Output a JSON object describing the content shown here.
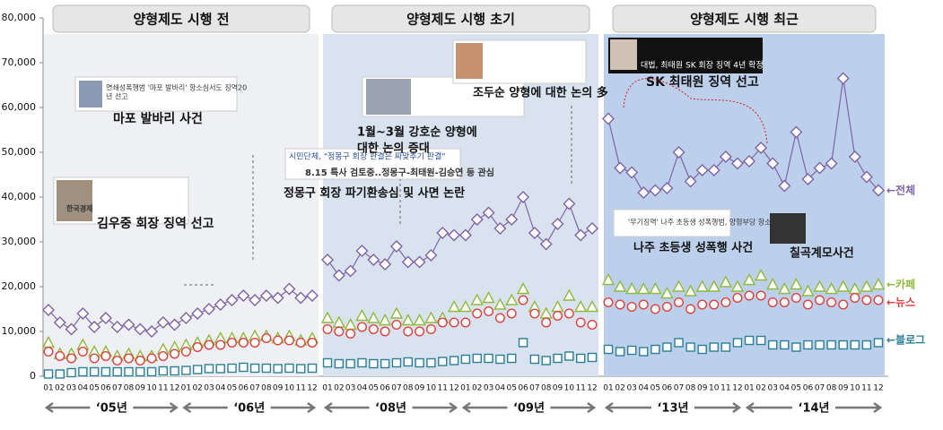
{
  "chart_data": {
    "type": "line",
    "ylim": [
      0,
      80000
    ],
    "yticks": [
      0,
      {
        "value": 10000,
        "label": "10,000"
      },
      {
        "value": 20000,
        "label": "20,000"
      },
      {
        "value": 30000,
        "label": "30,000"
      },
      {
        "value": 40000,
        "label": "40,000"
      },
      {
        "value": 50000,
        "label": "50,000"
      },
      {
        "value": 60000,
        "label": "60,000"
      },
      {
        "value": 70000,
        "label": "70,000"
      },
      {
        "value": 80000,
        "label": "80,000"
      }
    ],
    "grid": false,
    "series": [
      {
        "name": "←전체",
        "color": "#7f63a6",
        "marker": "diamond",
        "line": true
      },
      {
        "name": "←카페",
        "color": "#8fba3f",
        "marker": "triangle",
        "line": false
      },
      {
        "name": "←뉴스",
        "color": "#e0413d",
        "marker": "circle",
        "line": false
      },
      {
        "name": "←블로그",
        "color": "#2c7f96",
        "marker": "square",
        "line": false
      }
    ],
    "panels": [
      {
        "title": "양형제도 시행 전",
        "years": [
          "‘05년",
          "‘06년"
        ],
        "categories": [
          "01",
          "02",
          "03",
          "04",
          "05",
          "06",
          "07",
          "08",
          "09",
          "10",
          "11",
          "12",
          "01",
          "02",
          "03",
          "04",
          "05",
          "06",
          "07",
          "08",
          "09",
          "10",
          "11",
          "12"
        ],
        "values": [
          [
            14800,
            12000,
            10500,
            14000,
            11000,
            13000,
            11000,
            11500,
            10500,
            10000,
            12000,
            11500,
            13000,
            14000,
            15000,
            16000,
            17000,
            18000,
            17000,
            18000,
            17500,
            19500,
            17500,
            18000
          ],
          [
            7500,
            5000,
            5000,
            7000,
            5500,
            5500,
            4500,
            5000,
            4500,
            4500,
            6000,
            6500,
            7000,
            7500,
            8000,
            8500,
            8500,
            8500,
            9000,
            9000,
            8500,
            9000,
            8000,
            8500
          ],
          [
            5500,
            4500,
            4000,
            5500,
            4000,
            4500,
            3500,
            4000,
            3500,
            4000,
            4500,
            5000,
            5500,
            6500,
            7000,
            7000,
            7500,
            7500,
            7500,
            8500,
            8000,
            8000,
            7500,
            7500
          ],
          [
            500,
            500,
            800,
            1000,
            1000,
            1000,
            1000,
            1000,
            1000,
            1000,
            1200,
            1200,
            1300,
            1500,
            1700,
            1700,
            1800,
            2000,
            1800,
            1800,
            1700,
            1800,
            1700,
            1800
          ]
        ]
      },
      {
        "title": "양형제도 시행 초기",
        "years": [
          "‘08년",
          "‘09년"
        ],
        "categories": [
          "01",
          "02",
          "03",
          "04",
          "05",
          "06",
          "07",
          "08",
          "09",
          "10",
          "11",
          "12",
          "01",
          "02",
          "03",
          "04",
          "05",
          "06",
          "07",
          "08",
          "09",
          "10",
          "11",
          "12"
        ],
        "values": [
          [
            26000,
            22500,
            23500,
            28000,
            26000,
            25000,
            29000,
            25500,
            25500,
            27000,
            32000,
            31500,
            31500,
            35000,
            36500,
            33000,
            35000,
            40000,
            32000,
            29500,
            34000,
            38500,
            31500,
            33000
          ],
          [
            13000,
            12000,
            11500,
            13500,
            13000,
            12500,
            14000,
            12500,
            12500,
            13000,
            13000,
            15500,
            15500,
            17000,
            17500,
            16000,
            17000,
            19500,
            15500,
            14000,
            15500,
            18000,
            15500,
            15500
          ],
          [
            10500,
            10000,
            9500,
            11000,
            10500,
            10000,
            11500,
            10000,
            10000,
            10500,
            12000,
            12000,
            12000,
            14000,
            14500,
            13000,
            14000,
            17000,
            14000,
            12000,
            13500,
            14000,
            12000,
            11500
          ],
          [
            3000,
            2800,
            2800,
            3000,
            2800,
            2800,
            3000,
            3200,
            3000,
            3000,
            3300,
            3500,
            3800,
            4000,
            4000,
            3800,
            4000,
            7500,
            3800,
            3500,
            4000,
            4500,
            4000,
            4200
          ]
        ]
      },
      {
        "title": "양형제도 시행 최근",
        "years": [
          "‘13년",
          "‘14년"
        ],
        "categories": [
          "01",
          "02",
          "03",
          "04",
          "05",
          "06",
          "07",
          "08",
          "09",
          "10",
          "11",
          "12",
          "01",
          "02",
          "03",
          "04",
          "05",
          "06",
          "07",
          "08",
          "09",
          "10",
          "11",
          "12"
        ],
        "values": [
          [
            57500,
            46500,
            45500,
            41000,
            41500,
            42000,
            50000,
            43500,
            46000,
            46000,
            49000,
            47500,
            48000,
            51000,
            47500,
            42500,
            54500,
            44000,
            46500,
            47500,
            66500,
            49000,
            44500,
            41500
          ],
          [
            21500,
            20000,
            19500,
            19500,
            19500,
            18500,
            20000,
            19000,
            20000,
            20000,
            21000,
            20000,
            21500,
            22500,
            20500,
            19500,
            20500,
            19000,
            20000,
            19500,
            20000,
            19500,
            20000,
            20500
          ],
          [
            16500,
            16000,
            15500,
            16000,
            15000,
            15500,
            16500,
            15000,
            16000,
            16000,
            16500,
            17500,
            18000,
            18000,
            16500,
            16500,
            17500,
            16000,
            17000,
            16500,
            16000,
            17500,
            17000,
            17000
          ],
          [
            6000,
            5500,
            5800,
            5500,
            6000,
            6500,
            7500,
            6500,
            6000,
            6500,
            6500,
            7500,
            8000,
            8000,
            7000,
            7000,
            6500,
            7000,
            7000,
            7000,
            7000,
            7000,
            7000,
            7500
          ]
        ]
      }
    ],
    "annotations": [
      "마포 발바리 사건",
      "김우중 회장 징역 선고",
      "정몽구 회장 파기환송심 및 사면 논란",
      "1월~3월 강호순 양형에",
      "대한 논의 증대",
      "조두순 양형에 대한 논의 多",
      "SK 최태원 징역 선고",
      "나주 초등생 성폭행 사건",
      "칠곡계모사건"
    ],
    "news_clips": [
      "연쇄성폭행범 '마포 발바리' 항소심서도 징역20",
      "년 선고",
      "한국경제",
      "시민단체, \"정몽구 회장 판결은 짜맞추기 판결\"",
      "8.15 특사 검토중..정몽구-최태원-김승연 등 관심",
      "대법, 최태원 SK 회장 징역 4년 확정",
      "'무기징역' 나주 초등생 성폭행범, 양형부당 항소"
    ]
  }
}
